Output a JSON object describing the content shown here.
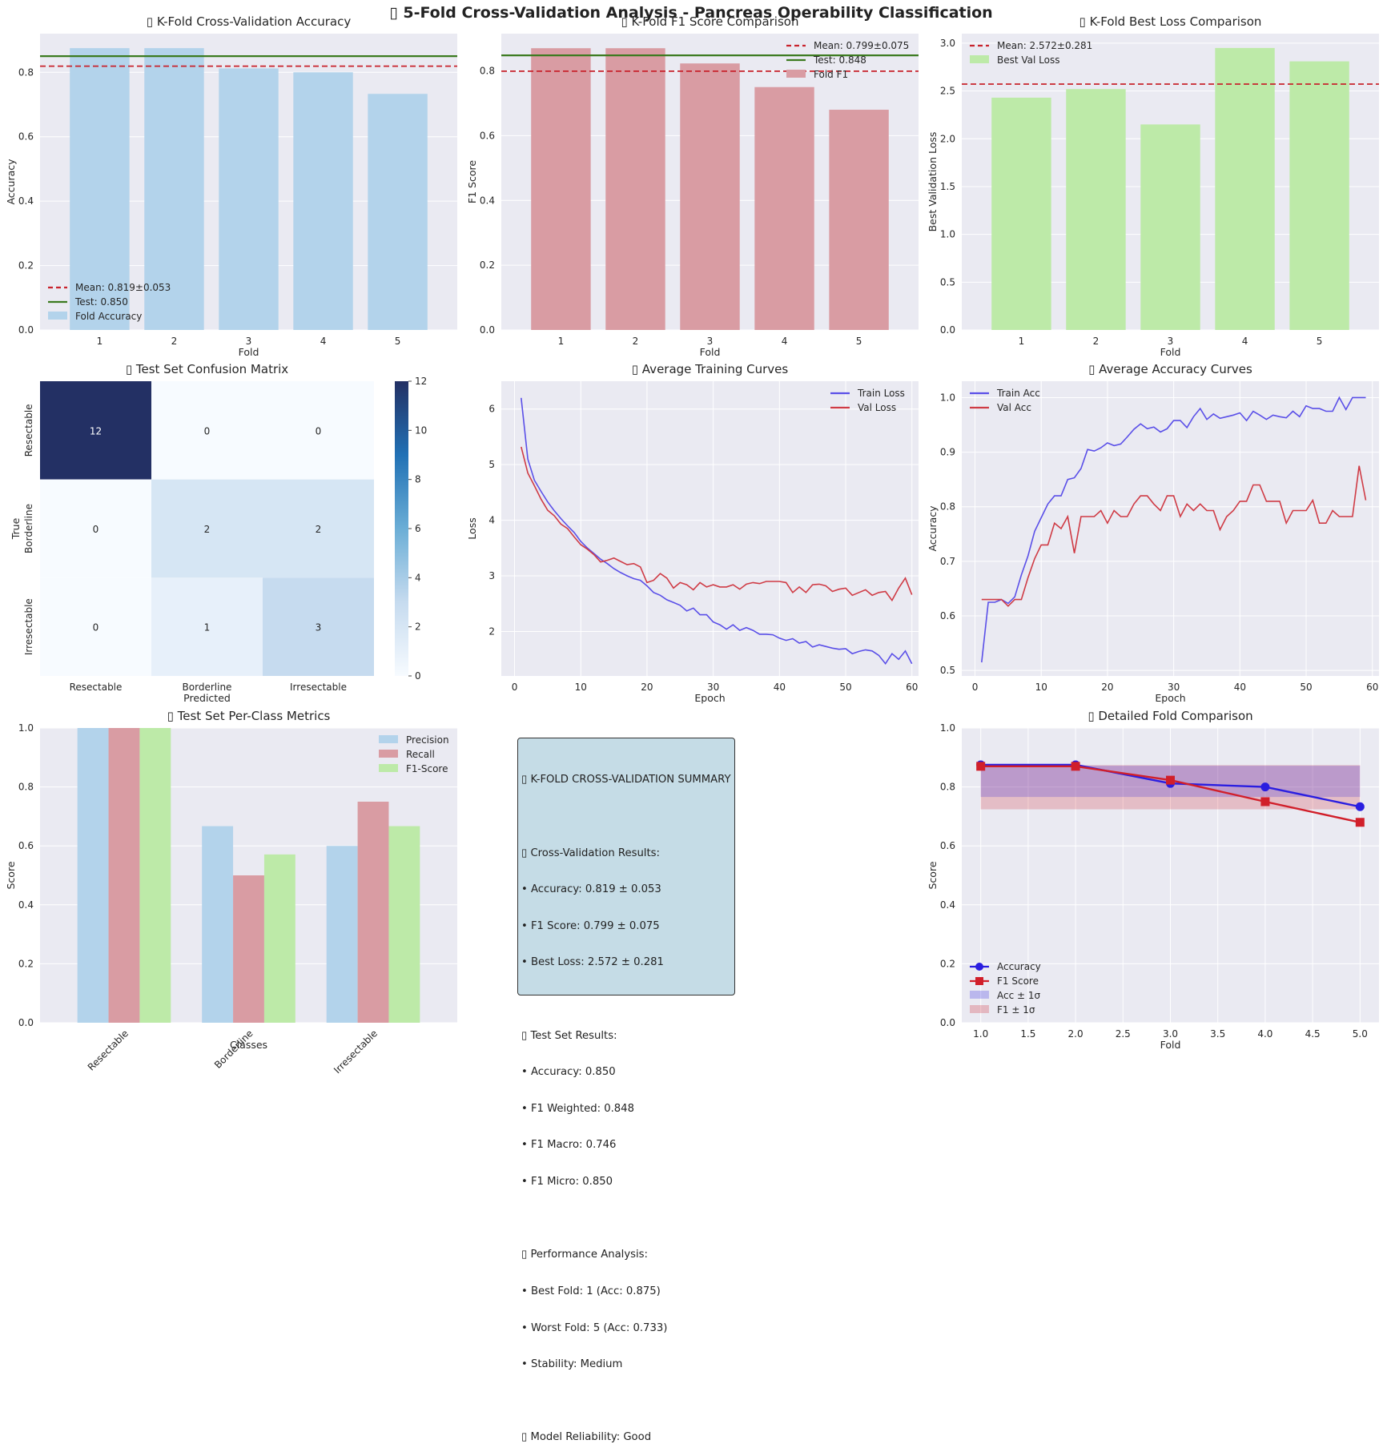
{
  "figure_title": "▯ 5-Fold Cross-Validation Analysis - Pancreas Operability Classification",
  "colors": {
    "panel_bg": "#eaeaf2",
    "grid": "#ffffff",
    "acc_bar": "#b3d3eb",
    "f1_bar": "#d99ca3",
    "loss_bar": "#bdeaa8",
    "mean_line": "#c8232c",
    "test_line": "#3b7a1f",
    "train_curve": "#5a4fe8",
    "val_curve": "#cf3b45",
    "acc_line": "#2a1ee0",
    "f1_line": "#d11f2a"
  },
  "chart_data": [
    {
      "id": "acc",
      "type": "bar",
      "title": "▯ K-Fold Cross-Validation Accuracy",
      "xlabel": "Fold",
      "ylabel": "Accuracy",
      "categories": [
        "1",
        "2",
        "3",
        "4",
        "5"
      ],
      "values": [
        0.875,
        0.875,
        0.812,
        0.8,
        0.733
      ],
      "ylim": [
        0,
        0.92
      ],
      "yticks": [
        0.0,
        0.2,
        0.4,
        0.6,
        0.8
      ],
      "ytick_labels": [
        "0.0",
        "0.2",
        "0.4",
        "0.6",
        "0.8"
      ],
      "mean": 0.819,
      "test": 0.85,
      "legend": [
        "Mean: 0.819±0.053",
        "Test: 0.850",
        "Fold Accuracy"
      ],
      "legend_position": "lower-left"
    },
    {
      "id": "f1",
      "type": "bar",
      "title": "▯ K-Fold F1 Score Comparison",
      "xlabel": "Fold",
      "ylabel": "F1 Score",
      "categories": [
        "1",
        "2",
        "3",
        "4",
        "5"
      ],
      "values": [
        0.87,
        0.87,
        0.823,
        0.75,
        0.68
      ],
      "ylim": [
        0,
        0.915
      ],
      "yticks": [
        0.0,
        0.2,
        0.4,
        0.6,
        0.8
      ],
      "ytick_labels": [
        "0.0",
        "0.2",
        "0.4",
        "0.6",
        "0.8"
      ],
      "mean": 0.799,
      "test": 0.848,
      "legend": [
        "Mean: 0.799±0.075",
        "Test: 0.848",
        "Fold F1"
      ],
      "legend_position": "upper-right"
    },
    {
      "id": "loss",
      "type": "bar",
      "title": "▯ K-Fold Best Loss Comparison",
      "xlabel": "Fold",
      "ylabel": "Best Validation Loss",
      "categories": [
        "1",
        "2",
        "3",
        "4",
        "5"
      ],
      "values": [
        2.43,
        2.52,
        2.15,
        2.95,
        2.81
      ],
      "ylim": [
        0,
        3.1
      ],
      "yticks": [
        0.0,
        0.5,
        1.0,
        1.5,
        2.0,
        2.5,
        3.0
      ],
      "ytick_labels": [
        "0.0",
        "0.5",
        "1.0",
        "1.5",
        "2.0",
        "2.5",
        "3.0"
      ],
      "mean": 2.572,
      "legend": [
        "Mean: 2.572±0.281",
        "Best Val Loss"
      ],
      "legend_position": "upper-left"
    },
    {
      "id": "cm",
      "type": "heatmap",
      "title": "▯ Test Set Confusion Matrix",
      "xlabel": "Predicted",
      "ylabel": "True",
      "classes": [
        "Resectable",
        "Borderline",
        "Irresectable"
      ],
      "matrix": [
        [
          12,
          0,
          0
        ],
        [
          0,
          2,
          2
        ],
        [
          0,
          1,
          3
        ]
      ],
      "colorbar_ticks": [
        "0",
        "2",
        "4",
        "6",
        "8",
        "10",
        "12"
      ],
      "vmax": 12
    },
    {
      "id": "trainloss",
      "type": "line",
      "title": "▯ Average Training Curves",
      "xlabel": "Epoch",
      "ylabel": "Loss",
      "xlim": [
        -2,
        61
      ],
      "ylim": [
        1.2,
        6.5
      ],
      "xticks": [
        0,
        10,
        20,
        30,
        40,
        50,
        60
      ],
      "xtick_labels": [
        "0",
        "10",
        "20",
        "30",
        "40",
        "50",
        "60"
      ],
      "yticks": [
        2,
        3,
        4,
        5,
        6
      ],
      "ytick_labels": [
        "2",
        "3",
        "4",
        "5",
        "6"
      ],
      "legend": [
        "Train Loss",
        "Val Loss"
      ],
      "legend_position": "upper-right",
      "series": [
        {
          "name": "Train Loss",
          "values": [
            6.2,
            5.1,
            4.72,
            4.52,
            4.33,
            4.17,
            4.03,
            3.9,
            3.78,
            3.62,
            3.5,
            3.4,
            3.3,
            3.22,
            3.13,
            3.06,
            3.0,
            2.95,
            2.92,
            2.82,
            2.7,
            2.65,
            2.57,
            2.52,
            2.47,
            2.37,
            2.42,
            2.3,
            2.3,
            2.17,
            2.12,
            2.04,
            2.12,
            2.02,
            2.07,
            2.02,
            1.95,
            1.95,
            1.94,
            1.88,
            1.84,
            1.87,
            1.79,
            1.82,
            1.72,
            1.76,
            1.73,
            1.7,
            1.68,
            1.69,
            1.6,
            1.64,
            1.67,
            1.65,
            1.57,
            1.42,
            1.6,
            1.5,
            1.65,
            1.42
          ]
        },
        {
          "name": "Val Loss",
          "values": [
            5.32,
            4.85,
            4.62,
            4.38,
            4.18,
            4.08,
            3.93,
            3.85,
            3.7,
            3.56,
            3.48,
            3.38,
            3.25,
            3.28,
            3.32,
            3.26,
            3.2,
            3.22,
            3.16,
            2.88,
            2.92,
            3.04,
            2.96,
            2.78,
            2.88,
            2.84,
            2.75,
            2.88,
            2.8,
            2.84,
            2.8,
            2.8,
            2.84,
            2.76,
            2.85,
            2.88,
            2.86,
            2.9,
            2.9,
            2.9,
            2.88,
            2.7,
            2.8,
            2.7,
            2.84,
            2.85,
            2.82,
            2.72,
            2.76,
            2.78,
            2.65,
            2.7,
            2.75,
            2.65,
            2.7,
            2.72,
            2.56,
            2.78,
            2.96,
            2.66
          ]
        }
      ]
    },
    {
      "id": "acccurve",
      "type": "line",
      "title": "▯ Average Accuracy Curves",
      "xlabel": "Epoch",
      "ylabel": "Accuracy",
      "xlim": [
        -2,
        61
      ],
      "ylim": [
        0.49,
        1.03
      ],
      "xticks": [
        0,
        10,
        20,
        30,
        40,
        50,
        60
      ],
      "xtick_labels": [
        "0",
        "10",
        "20",
        "30",
        "40",
        "50",
        "60"
      ],
      "yticks": [
        0.5,
        0.6,
        0.7,
        0.8,
        0.9,
        1.0
      ],
      "ytick_labels": [
        "0.5",
        "0.6",
        "0.7",
        "0.8",
        "0.9",
        "1.0"
      ],
      "legend": [
        "Train Acc",
        "Val Acc"
      ],
      "legend_position": "upper-left",
      "series": [
        {
          "name": "Train Acc",
          "values": [
            0.515,
            0.625,
            0.625,
            0.63,
            0.623,
            0.635,
            0.675,
            0.71,
            0.755,
            0.78,
            0.805,
            0.82,
            0.82,
            0.85,
            0.853,
            0.87,
            0.905,
            0.902,
            0.908,
            0.917,
            0.912,
            0.915,
            0.928,
            0.942,
            0.952,
            0.943,
            0.946,
            0.937,
            0.943,
            0.958,
            0.958,
            0.945,
            0.965,
            0.98,
            0.96,
            0.97,
            0.962,
            0.965,
            0.968,
            0.972,
            0.958,
            0.975,
            0.968,
            0.96,
            0.968,
            0.965,
            0.963,
            0.975,
            0.965,
            0.985,
            0.98,
            0.98,
            0.975,
            0.975,
            1.0,
            0.978,
            1.0,
            1.0,
            1.0
          ]
        },
        {
          "name": "Val Acc",
          "values": [
            0.63,
            0.63,
            0.63,
            0.63,
            0.618,
            0.63,
            0.63,
            0.67,
            0.705,
            0.73,
            0.73,
            0.77,
            0.76,
            0.782,
            0.715,
            0.782,
            0.782,
            0.782,
            0.793,
            0.77,
            0.793,
            0.782,
            0.782,
            0.805,
            0.82,
            0.82,
            0.805,
            0.793,
            0.82,
            0.82,
            0.782,
            0.805,
            0.793,
            0.805,
            0.793,
            0.793,
            0.758,
            0.782,
            0.793,
            0.81,
            0.81,
            0.84,
            0.84,
            0.81,
            0.81,
            0.81,
            0.77,
            0.793,
            0.793,
            0.793,
            0.812,
            0.77,
            0.77,
            0.793,
            0.782,
            0.782,
            0.782,
            0.875,
            0.812
          ]
        }
      ]
    },
    {
      "id": "perclass",
      "type": "bar",
      "title": "▯ Test Set Per-Class Metrics",
      "xlabel": "Classes",
      "ylabel": "Score",
      "categories": [
        "Resectable",
        "Borderline",
        "Irresectable"
      ],
      "ylim": [
        0,
        1.0
      ],
      "yticks": [
        0.0,
        0.2,
        0.4,
        0.6,
        0.8,
        1.0
      ],
      "ytick_labels": [
        "0.0",
        "0.2",
        "0.4",
        "0.6",
        "0.8",
        "1.0"
      ],
      "legend": [
        "Precision",
        "Recall",
        "F1-Score"
      ],
      "legend_position": "upper-right",
      "series": [
        {
          "name": "Precision",
          "values": [
            1.0,
            0.667,
            0.6
          ]
        },
        {
          "name": "Recall",
          "values": [
            1.0,
            0.5,
            0.75
          ]
        },
        {
          "name": "F1-Score",
          "values": [
            1.0,
            0.571,
            0.667
          ]
        }
      ]
    },
    {
      "id": "foldcmp",
      "type": "line",
      "title": "▯ Detailed Fold Comparison",
      "xlabel": "Fold",
      "ylabel": "Score",
      "xlim": [
        0.8,
        5.2
      ],
      "ylim": [
        0,
        1.0
      ],
      "xticks": [
        1.0,
        1.5,
        2.0,
        2.5,
        3.0,
        3.5,
        4.0,
        4.5,
        5.0
      ],
      "xtick_labels": [
        "1.0",
        "1.5",
        "2.0",
        "2.5",
        "3.0",
        "3.5",
        "4.0",
        "4.5",
        "5.0"
      ],
      "yticks": [
        0.0,
        0.2,
        0.4,
        0.6,
        0.8,
        1.0
      ],
      "ytick_labels": [
        "0.0",
        "0.2",
        "0.4",
        "0.6",
        "0.8",
        "1.0"
      ],
      "x": [
        1,
        2,
        3,
        4,
        5
      ],
      "legend": [
        "Accuracy",
        "F1 Score",
        "Acc ± 1σ",
        "F1 ± 1σ"
      ],
      "legend_position": "lower-left",
      "acc_band": [
        0.766,
        0.872
      ],
      "f1_band": [
        0.724,
        0.874
      ],
      "series": [
        {
          "name": "Accuracy",
          "values": [
            0.875,
            0.875,
            0.812,
            0.8,
            0.733
          ]
        },
        {
          "name": "F1 Score",
          "values": [
            0.87,
            0.87,
            0.823,
            0.75,
            0.68
          ]
        }
      ]
    }
  ],
  "summary": {
    "lines": [
      "▯ K-FOLD CROSS-VALIDATION SUMMARY",
      "",
      "▯ Cross-Validation Results:",
      "• Accuracy: 0.819 ± 0.053",
      "• F1 Score: 0.799 ± 0.075",
      "• Best Loss: 2.572 ± 0.281",
      "",
      "▯ Test Set Results:",
      "• Accuracy: 0.850",
      "• F1 Weighted: 0.848",
      "• F1 Macro: 0.746",
      "• F1 Micro: 0.850",
      "",
      "▯ Performance Analysis:",
      "• Best Fold: 1 (Acc: 0.875)",
      "• Worst Fold: 5 (Acc: 0.733)",
      "• Stability: Medium",
      "",
      "▯ Model Reliability: Good"
    ]
  }
}
